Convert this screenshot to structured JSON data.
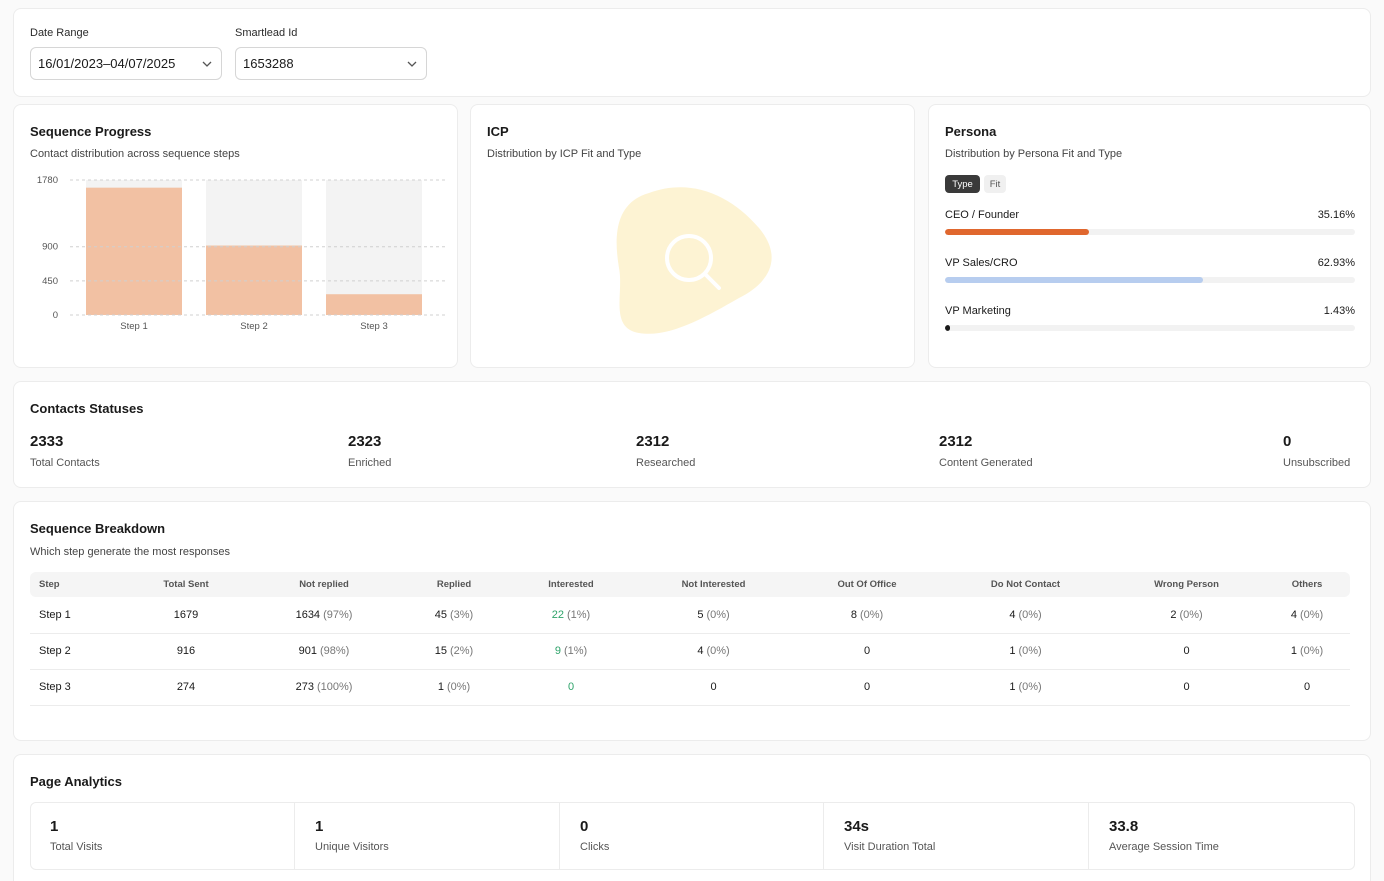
{
  "filters": {
    "date_range_label": "Date Range",
    "date_range_value": "16/01/2023–04/07/2025",
    "smartlead_label": "Smartlead Id",
    "smartlead_value": "1653288"
  },
  "sequence_progress": {
    "title": "Sequence Progress",
    "subtitle": "Contact distribution across sequence steps"
  },
  "chart_data": {
    "type": "bar",
    "categories": [
      "Step 1",
      "Step 2",
      "Step 3"
    ],
    "values": [
      1679,
      916,
      274
    ],
    "max": 1780,
    "yticks": [
      0,
      450,
      900,
      1780
    ],
    "bar_color": "#f2c1a3",
    "track_color": "#f3f3f3"
  },
  "icp": {
    "title": "ICP",
    "subtitle": "Distribution by ICP Fit and Type",
    "empty_icon": "search-icon",
    "blob_color": "#fdf3d3"
  },
  "persona": {
    "title": "Persona",
    "subtitle": "Distribution by Persona Fit and Type",
    "tabs": [
      {
        "label": "Type",
        "active": true
      },
      {
        "label": "Fit",
        "active": false
      }
    ],
    "rows": [
      {
        "name": "CEO / Founder",
        "pct": "35.16%",
        "value": 35.16,
        "color": "#e0672e"
      },
      {
        "name": "VP Sales/CRO",
        "pct": "62.93%",
        "value": 62.93,
        "color": "#b7cdef"
      },
      {
        "name": "VP Marketing",
        "pct": "1.43%",
        "value": 1.43,
        "color": "#1a1a1a"
      }
    ]
  },
  "contacts_statuses": {
    "title": "Contacts Statuses",
    "stats": [
      {
        "value": "2333",
        "label": "Total Contacts"
      },
      {
        "value": "2323",
        "label": "Enriched"
      },
      {
        "value": "2312",
        "label": "Researched"
      },
      {
        "value": "2312",
        "label": "Content Generated"
      },
      {
        "value": "0",
        "label": "Unsubscribed"
      }
    ]
  },
  "sequence_breakdown": {
    "title": "Sequence Breakdown",
    "subtitle": "Which step generate the most responses",
    "columns": [
      "Step",
      "Total Sent",
      "Not replied",
      "Replied",
      "Interested",
      "Not Interested",
      "Out Of Office",
      "Do Not Contact",
      "Wrong Person",
      "Others"
    ],
    "rows": [
      [
        [
          "Step 1",
          ""
        ],
        [
          "1679",
          ""
        ],
        [
          "1634",
          "(97%)"
        ],
        [
          "45",
          "(3%)"
        ],
        [
          "22",
          "(1%)"
        ],
        [
          "5",
          "(0%)"
        ],
        [
          "8",
          "(0%)"
        ],
        [
          "4",
          "(0%)"
        ],
        [
          "2",
          "(0%)"
        ],
        [
          "4",
          "(0%)"
        ]
      ],
      [
        [
          "Step 2",
          ""
        ],
        [
          "916",
          ""
        ],
        [
          "901",
          "(98%)"
        ],
        [
          "15",
          "(2%)"
        ],
        [
          "9",
          "(1%)"
        ],
        [
          "4",
          "(0%)"
        ],
        [
          "0",
          ""
        ],
        [
          "1",
          "(0%)"
        ],
        [
          "0",
          ""
        ],
        [
          "1",
          "(0%)"
        ]
      ],
      [
        [
          "Step 3",
          ""
        ],
        [
          "274",
          ""
        ],
        [
          "273",
          "(100%)"
        ],
        [
          "1",
          "(0%)"
        ],
        [
          "0",
          ""
        ],
        [
          "0",
          ""
        ],
        [
          "0",
          ""
        ],
        [
          "1",
          "(0%)"
        ],
        [
          "0",
          ""
        ],
        [
          "0",
          ""
        ]
      ]
    ]
  },
  "page_analytics": {
    "title": "Page Analytics",
    "stats": [
      {
        "value": "1",
        "label": "Total Visits"
      },
      {
        "value": "1",
        "label": "Unique Visitors"
      },
      {
        "value": "0",
        "label": "Clicks"
      },
      {
        "value": "34s",
        "label": "Visit Duration Total"
      },
      {
        "value": "33.8",
        "label": "Average Session Time"
      }
    ]
  }
}
